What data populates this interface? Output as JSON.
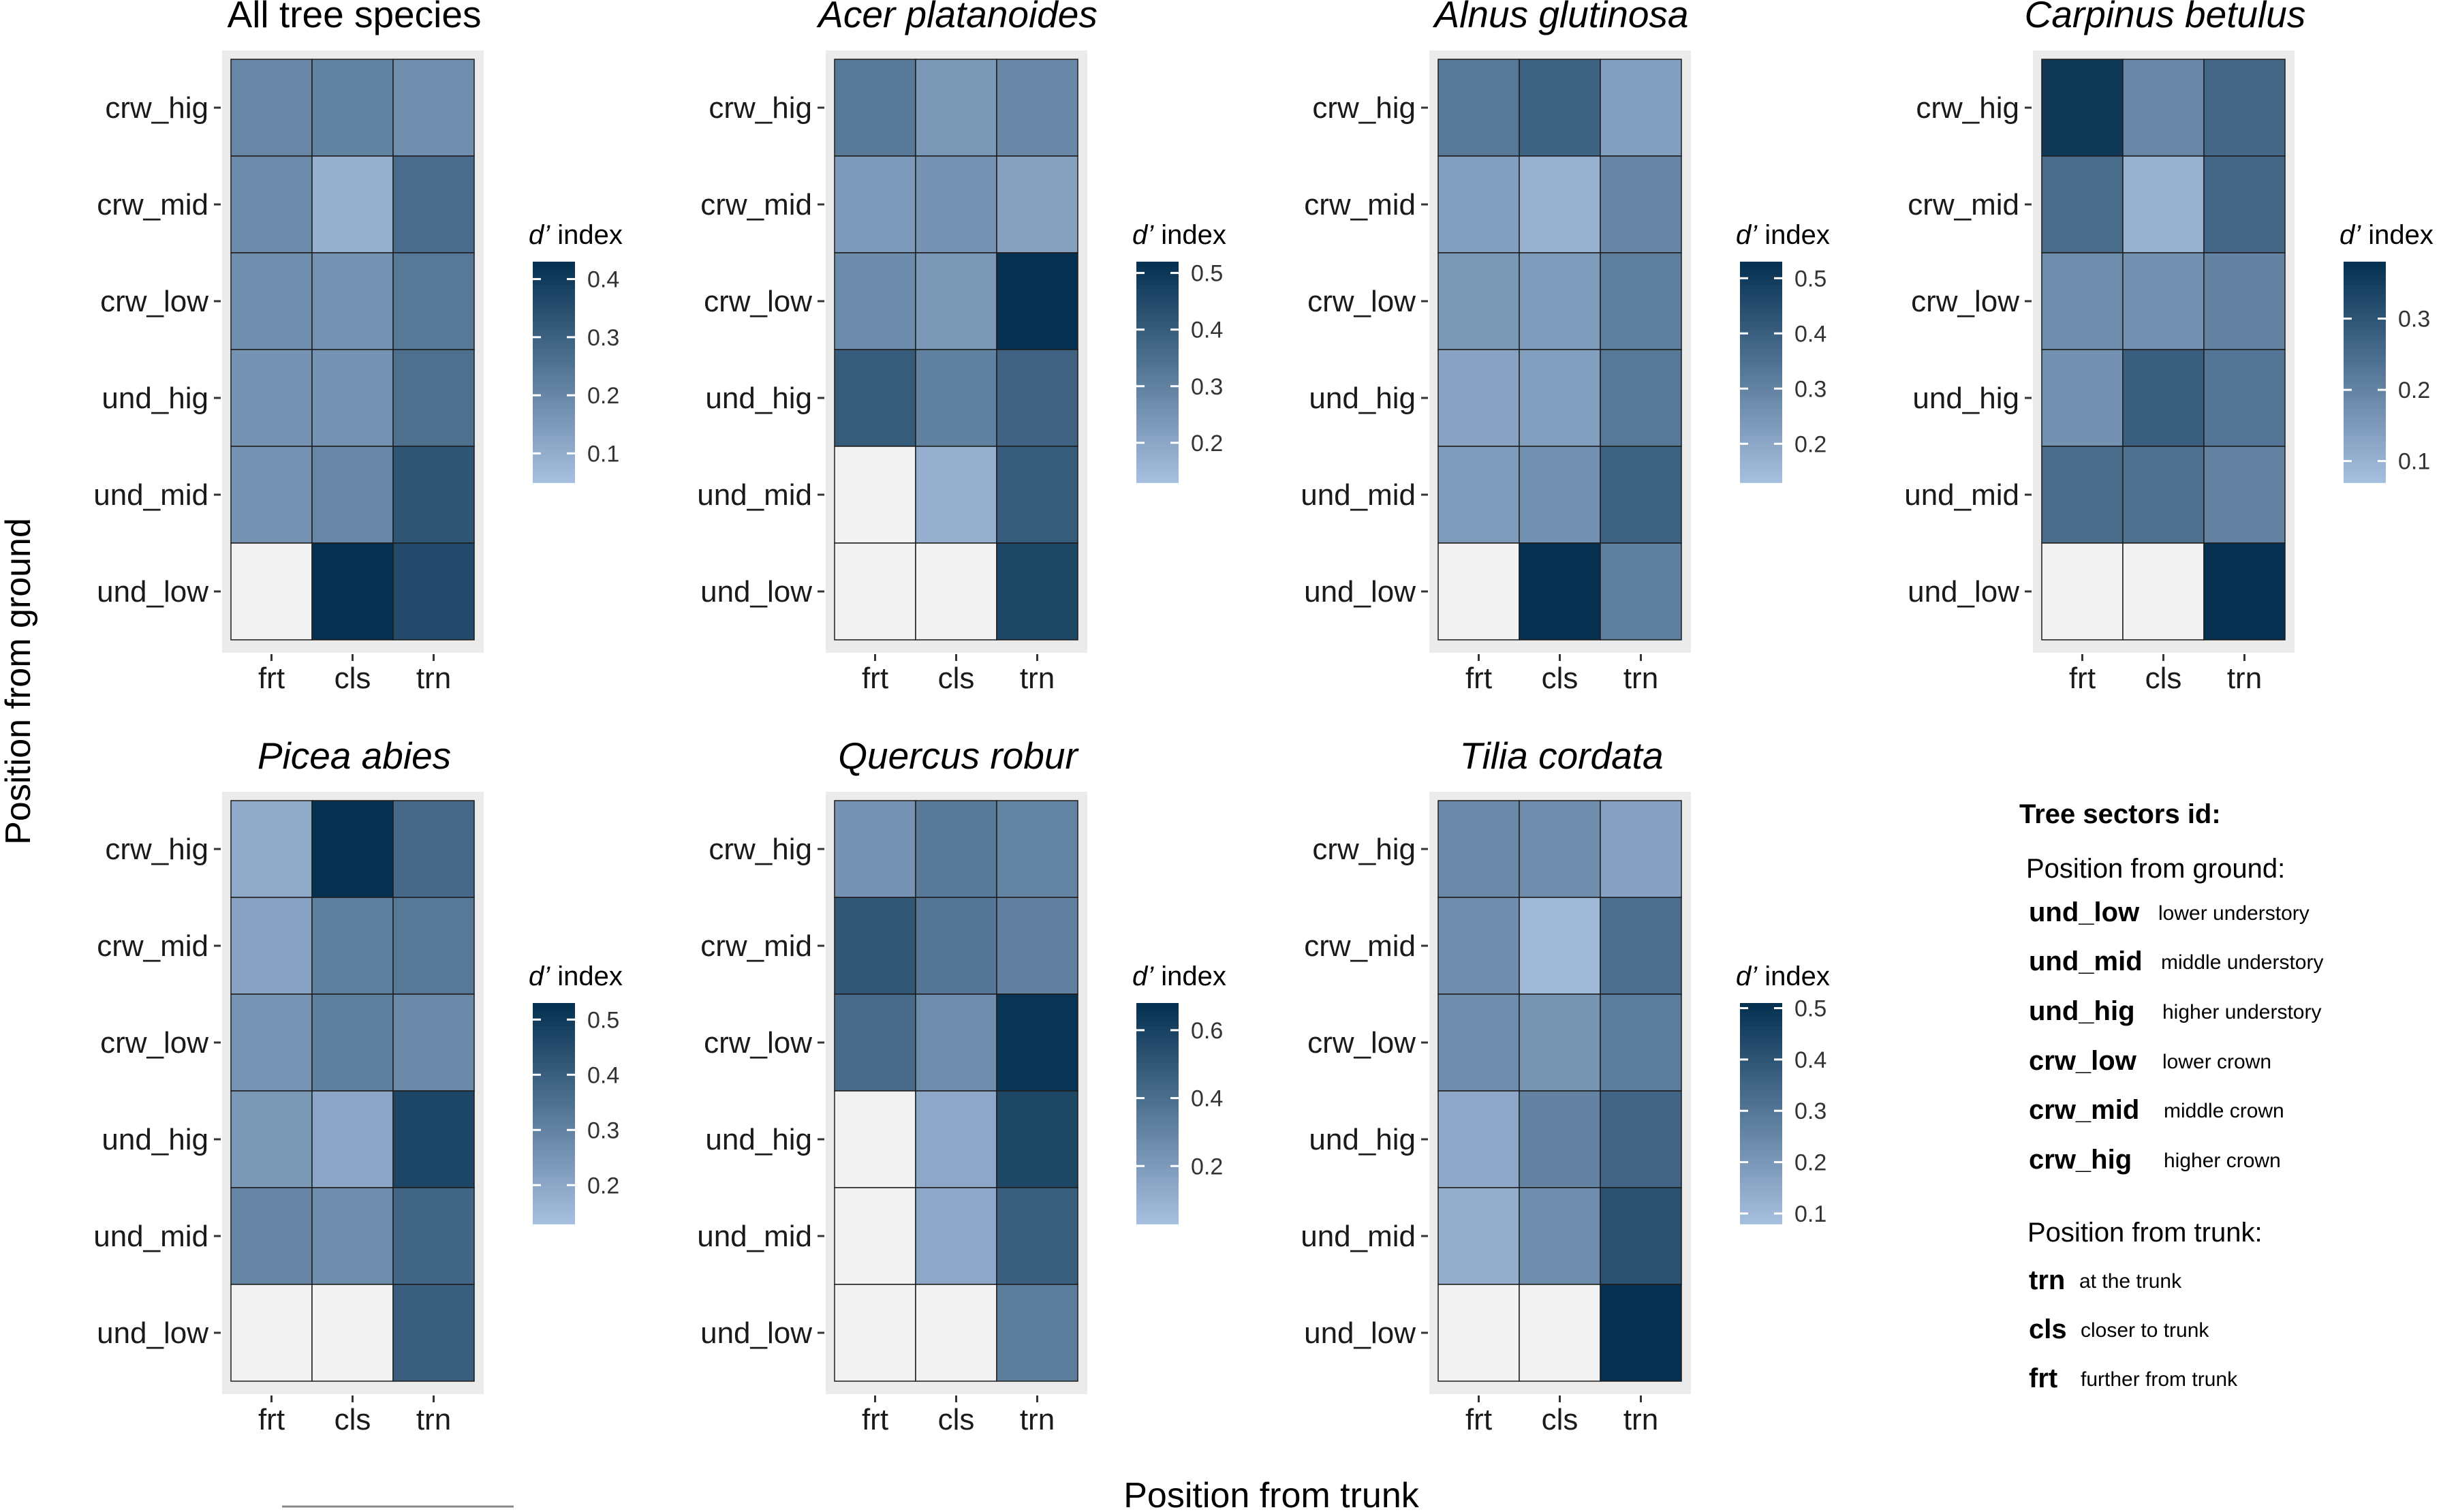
{
  "axis_titles": {
    "y": "Position from ground",
    "x": "Position from trunk"
  },
  "chart_data": [
    {
      "type": "heatmap",
      "title": "All tree species",
      "italic": false,
      "rows": [
        "crw_hig",
        "crw_mid",
        "crw_low",
        "und_hig",
        "und_mid",
        "und_low"
      ],
      "cols": [
        "frt",
        "cls",
        "trn"
      ],
      "legend_title": "d’ index",
      "legend_min": 0.05,
      "legend_max": 0.43,
      "legend_ticks": [
        0.1,
        0.2,
        0.3,
        0.4
      ],
      "values": [
        [
          0.2,
          0.21,
          0.18
        ],
        [
          0.19,
          0.09,
          0.27
        ],
        [
          0.18,
          0.17,
          0.24
        ],
        [
          0.17,
          0.17,
          0.26
        ],
        [
          0.17,
          0.2,
          0.33
        ],
        [
          null,
          0.43,
          0.36
        ]
      ]
    },
    {
      "type": "heatmap",
      "title": "Acer platanoides",
      "italic": true,
      "rows": [
        "crw_hig",
        "crw_mid",
        "crw_low",
        "und_hig",
        "und_mid",
        "und_low"
      ],
      "cols": [
        "frt",
        "cls",
        "trn"
      ],
      "legend_title": "d’ index",
      "legend_min": 0.13,
      "legend_max": 0.52,
      "legend_ticks": [
        0.2,
        0.3,
        0.4,
        0.5
      ],
      "values": [
        [
          0.32,
          0.24,
          0.28
        ],
        [
          0.23,
          0.25,
          0.21
        ],
        [
          0.27,
          0.24,
          0.52
        ],
        [
          0.4,
          0.3,
          0.38
        ],
        [
          null,
          0.17,
          0.4
        ],
        [
          null,
          null,
          0.46
        ]
      ]
    },
    {
      "type": "heatmap",
      "title": "Alnus glutinosa",
      "italic": true,
      "rows": [
        "crw_hig",
        "crw_mid",
        "crw_low",
        "und_hig",
        "und_mid",
        "und_low"
      ],
      "cols": [
        "frt",
        "cls",
        "trn"
      ],
      "legend_title": "d’ index",
      "legend_min": 0.13,
      "legend_max": 0.53,
      "legend_ticks": [
        0.2,
        0.3,
        0.4,
        0.5
      ],
      "values": [
        [
          0.33,
          0.39,
          0.22
        ],
        [
          0.22,
          0.17,
          0.29
        ],
        [
          0.24,
          0.23,
          0.31
        ],
        [
          0.21,
          0.22,
          0.33
        ],
        [
          0.23,
          0.26,
          0.39
        ],
        [
          null,
          0.53,
          0.31
        ]
      ]
    },
    {
      "type": "heatmap",
      "title": "Carpinus betulus",
      "italic": true,
      "rows": [
        "crw_hig",
        "crw_mid",
        "crw_low",
        "und_hig",
        "und_mid",
        "und_low"
      ],
      "cols": [
        "frt",
        "cls",
        "trn"
      ],
      "legend_title": "d’ index",
      "legend_min": 0.07,
      "legend_max": 0.38,
      "legend_ticks": [
        0.1,
        0.2,
        0.3
      ],
      "values": [
        [
          0.36,
          0.19,
          0.26
        ],
        [
          0.25,
          0.1,
          0.26
        ],
        [
          0.18,
          0.17,
          0.2
        ],
        [
          0.17,
          0.28,
          0.23
        ],
        [
          0.25,
          0.24,
          0.2
        ],
        [
          null,
          null,
          0.38
        ]
      ]
    },
    {
      "type": "heatmap",
      "title": "Picea abies",
      "italic": true,
      "rows": [
        "crw_hig",
        "crw_mid",
        "crw_low",
        "und_hig",
        "und_mid",
        "und_low"
      ],
      "cols": [
        "frt",
        "cls",
        "trn"
      ],
      "legend_title": "d’ index",
      "legend_min": 0.13,
      "legend_max": 0.53,
      "legend_ticks": [
        0.2,
        0.3,
        0.4,
        0.5
      ],
      "values": [
        [
          0.19,
          0.53,
          0.37
        ],
        [
          0.21,
          0.31,
          0.33
        ],
        [
          0.25,
          0.31,
          0.28
        ],
        [
          0.24,
          0.2,
          0.47
        ],
        [
          0.29,
          0.27,
          0.38
        ],
        [
          null,
          null,
          0.4
        ]
      ]
    },
    {
      "type": "heatmap",
      "title": "Quercus robur",
      "italic": true,
      "rows": [
        "crw_hig",
        "crw_mid",
        "crw_low",
        "und_hig",
        "und_mid",
        "und_low"
      ],
      "cols": [
        "frt",
        "cls",
        "trn"
      ],
      "legend_title": "d’ index",
      "legend_min": 0.03,
      "legend_max": 0.68,
      "legend_ticks": [
        0.2,
        0.4,
        0.6
      ],
      "values": [
        [
          0.23,
          0.35,
          0.3
        ],
        [
          0.5,
          0.36,
          0.31
        ],
        [
          0.41,
          0.26,
          0.66
        ],
        [
          null,
          0.14,
          0.58
        ],
        [
          null,
          0.14,
          0.47
        ],
        [
          null,
          null,
          0.33
        ]
      ]
    },
    {
      "type": "heatmap",
      "title": "Tilia cordata",
      "italic": true,
      "rows": [
        "crw_hig",
        "crw_mid",
        "crw_low",
        "und_hig",
        "und_mid",
        "und_low"
      ],
      "cols": [
        "frt",
        "cls",
        "trn"
      ],
      "legend_title": "d’ index",
      "legend_min": 0.08,
      "legend_max": 0.51,
      "legend_ticks": [
        0.1,
        0.2,
        0.3,
        0.4,
        0.5
      ],
      "values": [
        [
          0.24,
          0.23,
          0.17
        ],
        [
          0.23,
          0.1,
          0.32
        ],
        [
          0.23,
          0.21,
          0.28
        ],
        [
          0.15,
          0.26,
          0.35
        ],
        [
          0.13,
          0.23,
          0.41
        ],
        [
          null,
          null,
          0.51
        ]
      ]
    }
  ],
  "key": {
    "title": "Tree sectors id:",
    "ground_heading": "Position from ground:",
    "ground_items": [
      {
        "code": "und_low",
        "desc": "lower understory"
      },
      {
        "code": "und_mid",
        "desc": "middle understory"
      },
      {
        "code": "und_hig",
        "desc": "higher understory"
      },
      {
        "code": "crw_low",
        "desc": "lower crown"
      },
      {
        "code": "crw_mid",
        "desc": "middle crown"
      },
      {
        "code": "crw_hig",
        "desc": "higher crown"
      }
    ],
    "trunk_heading": "Position from trunk:",
    "trunk_items": [
      {
        "code": "trn",
        "desc": "at the trunk"
      },
      {
        "code": "cls",
        "desc": "closer to trunk"
      },
      {
        "code": "frt",
        "desc": "further from trunk"
      }
    ]
  },
  "colors": {
    "low": "#a8bfdf",
    "high": "#05304f",
    "na": "#f2f2f2",
    "panel": "#ebebeb"
  }
}
